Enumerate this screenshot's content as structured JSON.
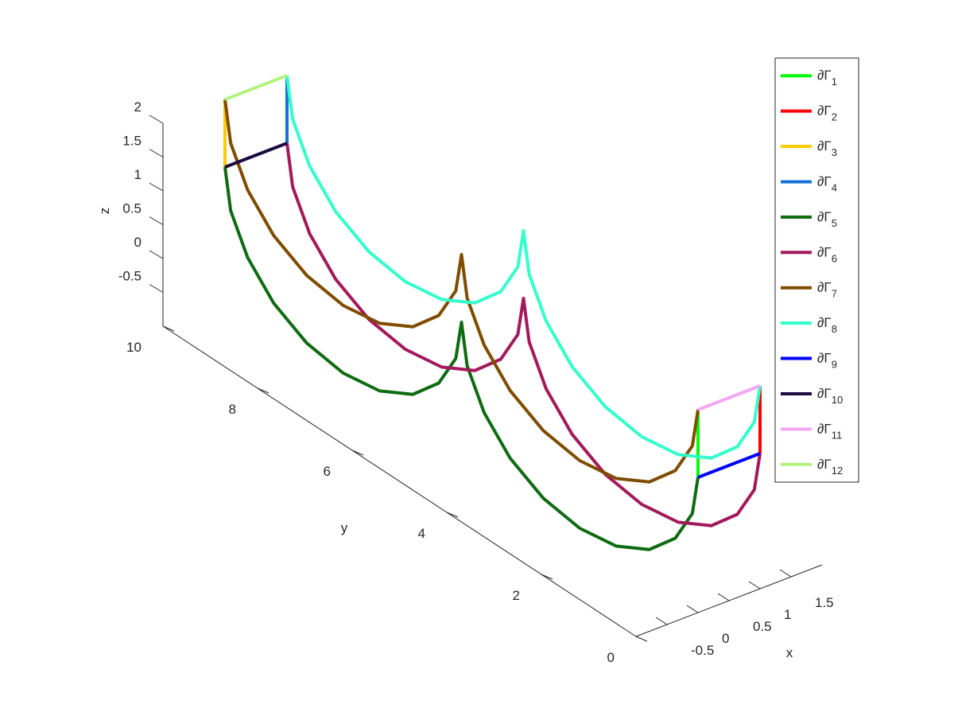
{
  "chart_data": {
    "type": "line3d",
    "xlabel": "x",
    "ylabel": "y",
    "zlabel": "z",
    "xlim": [
      -1,
      2
    ],
    "ylim": [
      0,
      10
    ],
    "zlim": [
      -1,
      2
    ],
    "xticks": [
      -0.5,
      0,
      0.5,
      1,
      1.5
    ],
    "yticks": [
      0,
      2,
      4,
      6,
      8,
      10
    ],
    "zticks": [
      -0.5,
      0,
      0.5,
      1,
      1.5,
      2
    ],
    "series": [
      {
        "name": "∂Γ",
        "subscript": "1",
        "color": "#00ff00",
        "x": [
          0,
          0
        ],
        "y": [
          0,
          0
        ],
        "z": [
          1,
          2
        ]
      },
      {
        "name": "∂Γ",
        "subscript": "2",
        "color": "#ff0000",
        "x": [
          1,
          1
        ],
        "y": [
          0,
          0
        ],
        "z": [
          1,
          2
        ]
      },
      {
        "name": "∂Γ",
        "subscript": "3",
        "color": "#ffcc00",
        "x": [
          0,
          0
        ],
        "y": [
          10,
          10
        ],
        "z": [
          1,
          2
        ]
      },
      {
        "name": "∂Γ",
        "subscript": "4",
        "color": "#1372d8",
        "x": [
          1,
          1
        ],
        "y": [
          10,
          10
        ],
        "z": [
          1,
          2
        ]
      },
      {
        "name": "∂Γ",
        "subscript": "5",
        "color": "#0f6b12",
        "x": [
          0,
          0,
          0,
          0,
          0,
          0,
          0,
          0,
          0,
          0,
          0,
          0,
          0,
          0,
          0,
          0,
          0,
          0,
          0,
          0,
          0
        ],
        "y": [
          0,
          0.12,
          0.48,
          1.03,
          1.73,
          2.5,
          3.27,
          3.97,
          4.52,
          4.88,
          5,
          5.12,
          5.48,
          6.03,
          6.73,
          7.5,
          8.27,
          8.97,
          9.52,
          9.88,
          10
        ],
        "z": [
          1,
          0.41,
          -0.12,
          -0.54,
          -0.81,
          -0.9,
          -0.81,
          -0.54,
          -0.12,
          0.41,
          1,
          0.41,
          -0.12,
          -0.54,
          -0.81,
          -0.9,
          -0.81,
          -0.54,
          -0.12,
          0.41,
          1
        ]
      },
      {
        "name": "∂Γ",
        "subscript": "6",
        "color": "#a3195b",
        "x": [
          1,
          1,
          1,
          1,
          1,
          1,
          1,
          1,
          1,
          1,
          1,
          1,
          1,
          1,
          1,
          1,
          1,
          1,
          1,
          1,
          1
        ],
        "y": [
          0,
          0.12,
          0.48,
          1.03,
          1.73,
          2.5,
          3.27,
          3.97,
          4.52,
          4.88,
          5,
          5.12,
          5.48,
          6.03,
          6.73,
          7.5,
          8.27,
          8.97,
          9.52,
          9.88,
          10
        ],
        "z": [
          1,
          0.41,
          -0.12,
          -0.54,
          -0.81,
          -0.9,
          -0.81,
          -0.54,
          -0.12,
          0.41,
          1,
          0.41,
          -0.12,
          -0.54,
          -0.81,
          -0.9,
          -0.81,
          -0.54,
          -0.12,
          0.41,
          1
        ]
      },
      {
        "name": "∂Γ",
        "subscript": "7",
        "color": "#7f4c00",
        "x": [
          0,
          0,
          0,
          0,
          0,
          0,
          0,
          0,
          0,
          0,
          0,
          0,
          0,
          0,
          0,
          0,
          0,
          0,
          0,
          0,
          0
        ],
        "y": [
          0,
          0.12,
          0.48,
          1.03,
          1.73,
          2.5,
          3.27,
          3.97,
          4.52,
          4.88,
          5,
          5.12,
          5.48,
          6.03,
          6.73,
          7.5,
          8.27,
          8.97,
          9.52,
          9.88,
          10
        ],
        "z": [
          2,
          1.41,
          0.88,
          0.46,
          0.19,
          0.1,
          0.19,
          0.46,
          0.88,
          1.41,
          2,
          1.41,
          0.88,
          0.46,
          0.19,
          0.1,
          0.19,
          0.46,
          0.88,
          1.41,
          2
        ]
      },
      {
        "name": "∂Γ",
        "subscript": "8",
        "color": "#33ffcc",
        "x": [
          1,
          1,
          1,
          1,
          1,
          1,
          1,
          1,
          1,
          1,
          1,
          1,
          1,
          1,
          1,
          1,
          1,
          1,
          1,
          1,
          1
        ],
        "y": [
          0,
          0.12,
          0.48,
          1.03,
          1.73,
          2.5,
          3.27,
          3.97,
          4.52,
          4.88,
          5,
          5.12,
          5.48,
          6.03,
          6.73,
          7.5,
          8.27,
          8.97,
          9.52,
          9.88,
          10
        ],
        "z": [
          2,
          1.41,
          0.88,
          0.46,
          0.19,
          0.1,
          0.19,
          0.46,
          0.88,
          1.41,
          2,
          1.41,
          0.88,
          0.46,
          0.19,
          0.1,
          0.19,
          0.46,
          0.88,
          1.41,
          2
        ]
      },
      {
        "name": "∂Γ",
        "subscript": "9",
        "color": "#0000ff",
        "x": [
          0,
          1
        ],
        "y": [
          0,
          0
        ],
        "z": [
          1,
          1
        ]
      },
      {
        "name": "∂Γ",
        "subscript": "10",
        "color": "#1c0a40",
        "x": [
          0,
          1
        ],
        "y": [
          10,
          10
        ],
        "z": [
          1,
          1
        ]
      },
      {
        "name": "∂Γ",
        "subscript": "11",
        "color": "#f2a6f2",
        "x": [
          0,
          1
        ],
        "y": [
          0,
          0
        ],
        "z": [
          2,
          2
        ]
      },
      {
        "name": "∂Γ",
        "subscript": "12",
        "color": "#b3f27f",
        "x": [
          0,
          1
        ],
        "y": [
          10,
          10
        ],
        "z": [
          2,
          2
        ]
      }
    ],
    "legend": "northeast"
  }
}
